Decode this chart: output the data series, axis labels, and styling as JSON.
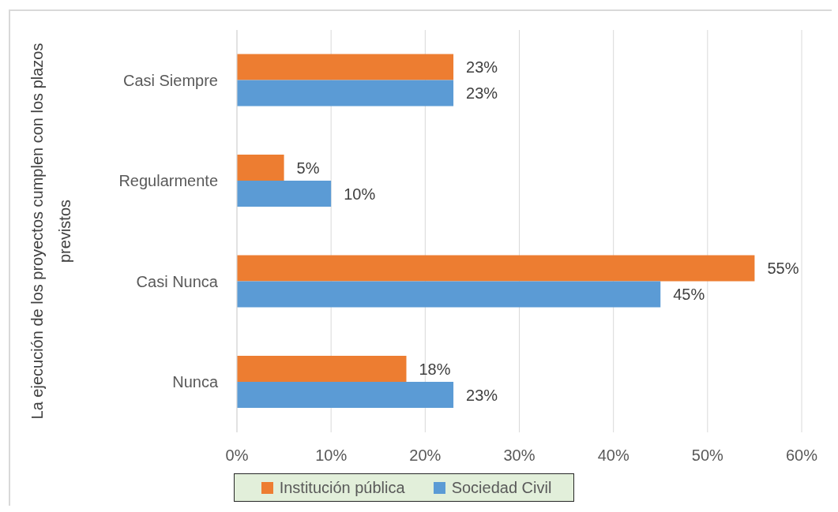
{
  "chart_data": {
    "type": "bar",
    "orientation": "horizontal",
    "ylabel": "La ejecución de los proyectos cumplen con los plazos previstos",
    "categories": [
      "Casi Siempre",
      "Regularmente",
      "Casi Nunca",
      "Nunca"
    ],
    "series": [
      {
        "name": "Institución pública",
        "color": "#ed7d31",
        "values": [
          23,
          5,
          55,
          18
        ],
        "value_labels": [
          "23%",
          "5%",
          "55%",
          "18%"
        ]
      },
      {
        "name": "Sociedad Civil",
        "color": "#5b9bd5",
        "values": [
          23,
          10,
          45,
          23
        ],
        "value_labels": [
          "23%",
          "10%",
          "45%",
          "23%"
        ]
      }
    ],
    "xlim": [
      0,
      60
    ],
    "xticks": [
      {
        "value": 0,
        "label": "0%"
      },
      {
        "value": 10,
        "label": "10%"
      },
      {
        "value": 20,
        "label": "20%"
      },
      {
        "value": 30,
        "label": "30%"
      },
      {
        "value": 40,
        "label": "40%"
      },
      {
        "value": 50,
        "label": "50%"
      },
      {
        "value": 60,
        "label": "60%"
      }
    ],
    "grid": "x",
    "legend": "bottom"
  }
}
